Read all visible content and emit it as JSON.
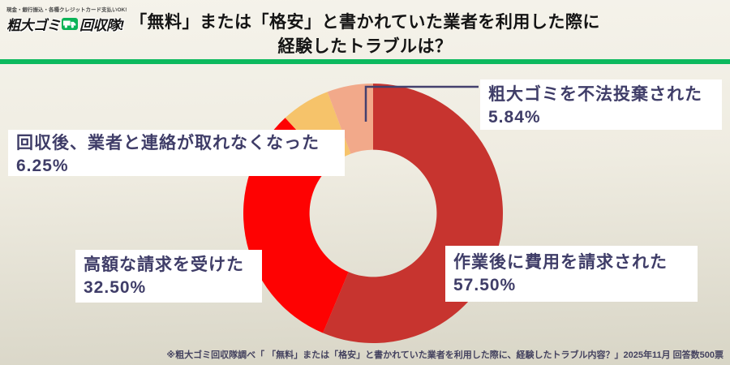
{
  "header": {
    "logo": {
      "tagline": "現金・銀行振込・各種クレジットカード支払いOK!",
      "brand_left": "粗大ゴミ",
      "brand_right": "回収隊!"
    },
    "title": "「無料」または「格安」と書かれていた業者を利用した際に\n経験したトラブルは？"
  },
  "icons": {
    "truck": "truck-icon",
    "cards": [
      "payment-card-icon",
      "payment-card-icon",
      "payment-card-icon",
      "payment-card-icon"
    ]
  },
  "colors": {
    "accent_green": "#0cb95e",
    "label_navy": "#3f3d68",
    "background_top": "#f5f3eb",
    "background_bottom": "#d8d5c6",
    "leader_line": "#44406e"
  },
  "chart_data": {
    "type": "pie",
    "subtype": "donut",
    "title": "「無料」または「格安」と書かれていた業者を利用した際に経験したトラブルは？",
    "start_angle_deg": 0,
    "direction": "clockwise",
    "inner_ratio": 0.49,
    "legend_position": "callout-labels",
    "slices": [
      {
        "label": "作業後に費用を請求された",
        "value": 57.5,
        "pct_label": "57.50%",
        "color": "#c7342f"
      },
      {
        "label": "高額な請求を受けた",
        "value": 32.5,
        "pct_label": "32.50%",
        "color": "#fe0202"
      },
      {
        "label": "回収後、業者と連絡が取れなくなった",
        "value": 6.25,
        "pct_label": "6.25%",
        "color": "#f6c36a"
      },
      {
        "label": "粗大ゴミを不法投棄された",
        "value": 5.84,
        "pct_label": "5.84%",
        "color": "#f2a98a"
      }
    ]
  },
  "footnote": "※粗大ゴミ回収隊調べ「 「無料」または「格安」と書かれていた業者を利用した際に、経験したトラブル内容？」2025年11月 回答数500票"
}
